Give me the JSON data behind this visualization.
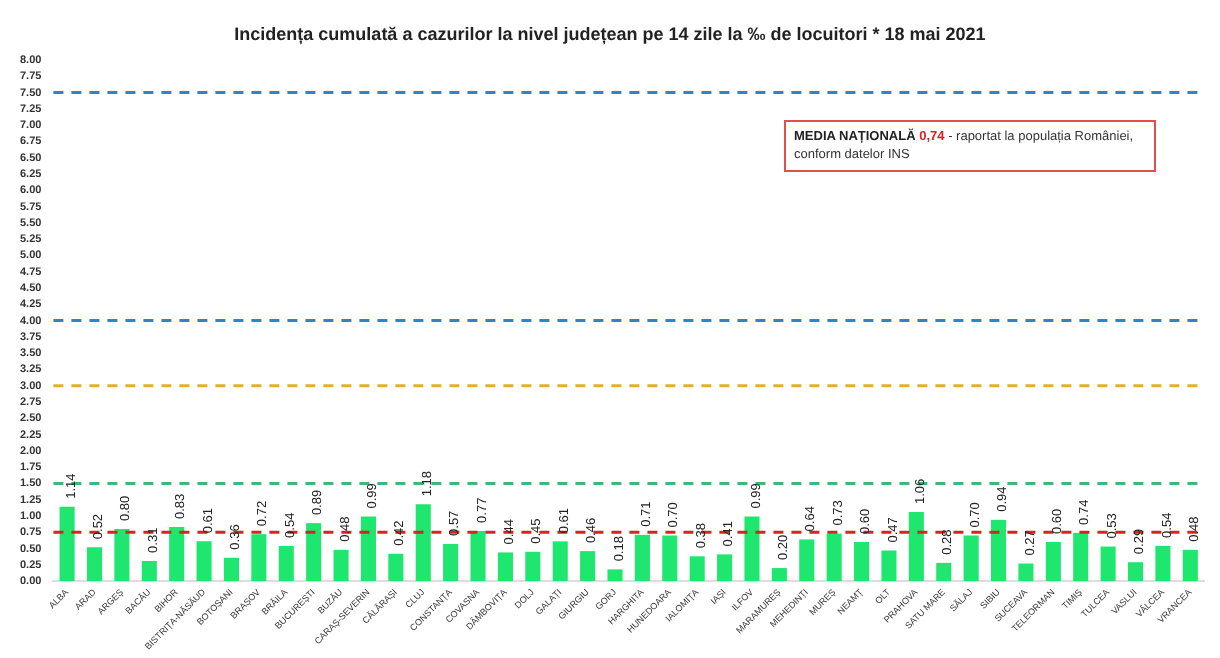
{
  "chart_data": {
    "type": "bar",
    "title": "Incidența cumulată a cazurilor la nivel județean pe 14 zile la ‰ de locuitori *  18 mai 2021",
    "categories": [
      "ALBA",
      "ARAD",
      "ARGEȘ",
      "BACĂU",
      "BIHOR",
      "BISTRIȚA-NĂSĂUD",
      "BOTOȘANI",
      "BRAȘOV",
      "BRĂILA",
      "BUCUREȘTI",
      "BUZĂU",
      "CARAȘ-SEVERIN",
      "CĂLĂRAȘI",
      "CLUJ",
      "CONSTANȚA",
      "COVASNA",
      "DÂMBOVIȚA",
      "DOLJ",
      "GALAȚI",
      "GIURGIU",
      "GORJ",
      "HARGHITA",
      "HUNEDOARA",
      "IALOMIȚA",
      "IAȘI",
      "ILFOV",
      "MARAMUREȘ",
      "MEHEDINȚI",
      "MUREȘ",
      "NEAMȚ",
      "OLT",
      "PRAHOVA",
      "SATU MARE",
      "SĂLAJ",
      "SIBIU",
      "SUCEAVA",
      "TELEORMAN",
      "TIMIȘ",
      "TULCEA",
      "VASLUI",
      "VÂLCEA",
      "VRANCEA"
    ],
    "values": [
      1.14,
      0.52,
      0.8,
      0.31,
      0.83,
      0.61,
      0.36,
      0.72,
      0.54,
      0.89,
      0.48,
      0.99,
      0.42,
      1.18,
      0.57,
      0.77,
      0.44,
      0.45,
      0.61,
      0.46,
      0.18,
      0.71,
      0.7,
      0.38,
      0.41,
      0.99,
      0.2,
      0.64,
      0.73,
      0.6,
      0.47,
      1.06,
      0.28,
      0.7,
      0.94,
      0.27,
      0.6,
      0.74,
      0.53,
      0.29,
      0.54,
      0.48
    ],
    "value_labels": [
      "1.14",
      "0.52",
      "0.80",
      "0.31",
      "0.83",
      "0.61",
      "0.36",
      "0.72",
      "0.54",
      "0.89",
      "0.48",
      "0.99",
      "0.42",
      "1.18",
      "0.57",
      "0.77",
      "0.44",
      "0.45",
      "0.61",
      "0.46",
      "0.18",
      "0.71",
      "0.70",
      "0.38",
      "0.41",
      "0.99",
      "0.20",
      "0.64",
      "0.73",
      "0.60",
      "0.47",
      "1.06",
      "0.28",
      "0.70",
      "0.94",
      "0.27",
      "0.60",
      "0.74",
      "0.53",
      "0.29",
      "0.54",
      "0.48"
    ],
    "color": "#1ee66e",
    "ylim": [
      0,
      8
    ],
    "yticks": [
      {
        "value": 0,
        "label": "0.00"
      },
      {
        "value": 0.25,
        "label": "0.25"
      },
      {
        "value": 0.5,
        "label": "0.50"
      },
      {
        "value": 0.75,
        "label": "0.75"
      },
      {
        "value": 1,
        "label": "1.00"
      },
      {
        "value": 1.25,
        "label": "1.25"
      },
      {
        "value": 1.5,
        "label": "1.50"
      },
      {
        "value": 1.75,
        "label": "1.75"
      },
      {
        "value": 2,
        "label": "2.00"
      },
      {
        "value": 2.25,
        "label": "2.25"
      },
      {
        "value": 2.5,
        "label": "2.50"
      },
      {
        "value": 2.75,
        "label": "2.75"
      },
      {
        "value": 3,
        "label": "3.00"
      },
      {
        "value": 3.25,
        "label": "3.25"
      },
      {
        "value": 3.5,
        "label": "3.50"
      },
      {
        "value": 3.75,
        "label": "3.75"
      },
      {
        "value": 4,
        "label": "4.00"
      },
      {
        "value": 4.25,
        "label": "4.25"
      },
      {
        "value": 4.5,
        "label": "4.50"
      },
      {
        "value": 4.75,
        "label": "4.75"
      },
      {
        "value": 5,
        "label": "5.00"
      },
      {
        "value": 5.25,
        "label": "5.25"
      },
      {
        "value": 5.5,
        "label": "5.50"
      },
      {
        "value": 5.75,
        "label": "5.75"
      },
      {
        "value": 6,
        "label": "6.00"
      },
      {
        "value": 6.25,
        "label": "6.25"
      },
      {
        "value": 6.5,
        "label": "6.50"
      },
      {
        "value": 6.75,
        "label": "6.75"
      },
      {
        "value": 7,
        "label": "7.00"
      },
      {
        "value": 7.25,
        "label": "7.25"
      },
      {
        "value": 7.5,
        "label": "7.50"
      },
      {
        "value": 7.75,
        "label": "7.75"
      },
      {
        "value": 8,
        "label": "8.00"
      }
    ],
    "grid": false,
    "legend": false,
    "ref_lines": [
      {
        "axis": "y",
        "value": 7.5,
        "color": "#2e86c8",
        "line_style": "dashed"
      },
      {
        "axis": "y",
        "value": 4,
        "color": "#2e86c8",
        "line_style": "dashed"
      },
      {
        "axis": "y",
        "value": 3,
        "color": "#e6b020",
        "line_style": "dashed"
      },
      {
        "axis": "y",
        "value": 1.5,
        "color": "#3cb878",
        "line_style": "dashed"
      },
      {
        "axis": "y",
        "value": 0.75,
        "color": "#e02020",
        "line_style": "dashed"
      }
    ],
    "annotations": [
      "MEDIA NAȚIONALĂ",
      "0,74",
      "- raportat la populația României, conform datelor INS"
    ]
  }
}
